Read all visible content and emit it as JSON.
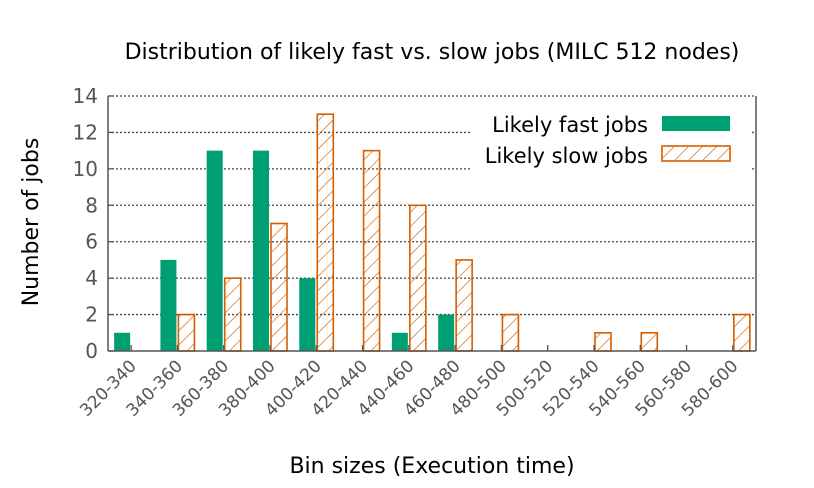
{
  "chart_data": {
    "type": "bar",
    "title": "Distribution of likely fast vs. slow jobs (MILC 512 nodes)",
    "xlabel": "Bin sizes (Execution time)",
    "ylabel": "Number of jobs",
    "ylim": [
      0,
      14
    ],
    "yticks": [
      0,
      2,
      4,
      6,
      8,
      10,
      12,
      14
    ],
    "grid": true,
    "legend_position": "top-right",
    "categories": [
      "320-340",
      "340-360",
      "360-380",
      "380-400",
      "400-420",
      "420-440",
      "440-460",
      "460-480",
      "480-500",
      "500-520",
      "520-540",
      "540-560",
      "560-580",
      "580-600"
    ],
    "series": [
      {
        "name": "Likely fast jobs",
        "color": "#009e73",
        "pattern": "solid",
        "values": [
          1,
          5,
          11,
          11,
          4,
          0,
          1,
          2,
          0,
          0,
          0,
          0,
          0,
          0
        ]
      },
      {
        "name": "Likely slow jobs",
        "color": "#d55e00",
        "pattern": "hatched",
        "values": [
          0,
          2,
          4,
          7,
          13,
          11,
          8,
          5,
          2,
          0,
          1,
          1,
          0,
          2
        ]
      }
    ]
  }
}
